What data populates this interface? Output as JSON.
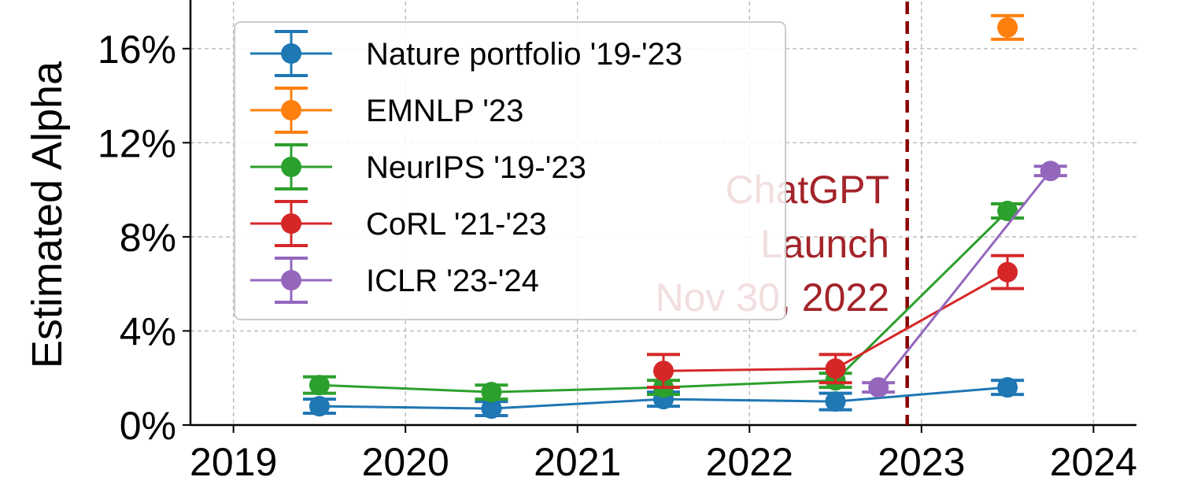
{
  "chart_data": {
    "type": "line",
    "xlabel": "",
    "ylabel": "Estimated Alpha",
    "xlim": [
      2018.75,
      2024.25
    ],
    "ylim": [
      0,
      18
    ],
    "x_ticks": [
      2019,
      2020,
      2021,
      2022,
      2023,
      2024
    ],
    "x_tick_labels": [
      "2019",
      "2020",
      "2021",
      "2022",
      "2023",
      "2024"
    ],
    "y_ticks": [
      0,
      4,
      8,
      12,
      16
    ],
    "y_tick_labels": [
      "0%",
      "4%",
      "8%",
      "12%",
      "16%"
    ],
    "grid": true,
    "legend_position": "top-left",
    "series": [
      {
        "name": "Nature portfolio '19-'23",
        "color": "#1f77b4",
        "x": [
          2019.5,
          2020.5,
          2021.5,
          2022.5,
          2023.5
        ],
        "y": [
          0.8,
          0.7,
          1.1,
          1.0,
          1.6
        ],
        "err": [
          0.3,
          0.3,
          0.3,
          0.35,
          0.3
        ]
      },
      {
        "name": "EMNLP '23",
        "color": "#ff7f0e",
        "x": [
          2023.5
        ],
        "y": [
          16.9
        ],
        "err": [
          0.5
        ]
      },
      {
        "name": "NeurIPS '19-'23",
        "color": "#2ca02c",
        "x": [
          2019.5,
          2020.5,
          2021.5,
          2022.5,
          2023.5
        ],
        "y": [
          1.7,
          1.4,
          1.6,
          1.9,
          9.1
        ],
        "err": [
          0.35,
          0.3,
          0.3,
          0.3,
          0.3
        ]
      },
      {
        "name": "CoRL '21-'23",
        "color": "#d62728",
        "x": [
          2021.5,
          2022.5,
          2023.5
        ],
        "y": [
          2.3,
          2.4,
          6.5
        ],
        "err": [
          0.7,
          0.6,
          0.7
        ]
      },
      {
        "name": "ICLR '23-'24",
        "color": "#9467bd",
        "x": [
          2022.75,
          2023.75
        ],
        "y": [
          1.6,
          10.8
        ],
        "err": [
          0.2,
          0.2
        ]
      }
    ],
    "vline": {
      "x": 2022.917,
      "color": "#8b0000"
    },
    "annotation": {
      "lines": [
        "ChatGPT",
        "Launch",
        "Nov 30, 2022"
      ],
      "color": "#a3242a"
    }
  }
}
